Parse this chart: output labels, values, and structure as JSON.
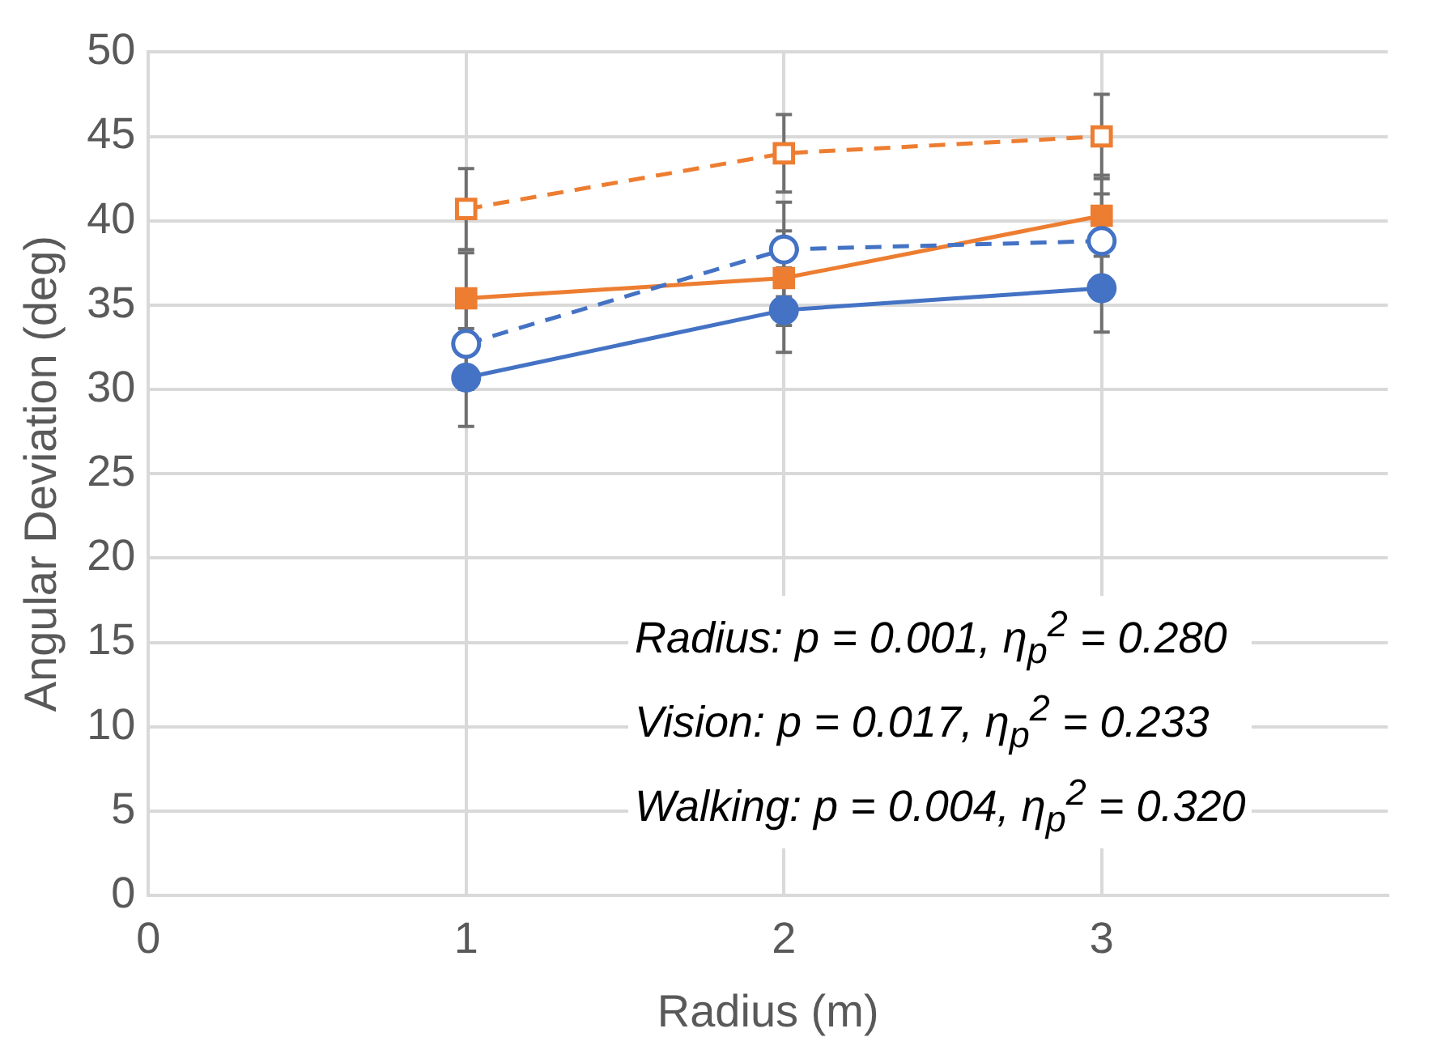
{
  "chart_data": {
    "type": "line",
    "xlabel": "Radius (m)",
    "ylabel": "Angular Deviation (deg)",
    "x": [
      1,
      2,
      3
    ],
    "xlim": [
      0,
      3.9
    ],
    "xticks": [
      0,
      1,
      2,
      3
    ],
    "ylim": [
      0,
      50
    ],
    "yticks": [
      0,
      5,
      10,
      15,
      20,
      25,
      30,
      35,
      40,
      45,
      50
    ],
    "grid": true,
    "legend": false,
    "series": [
      {
        "color": "#4472c4",
        "marker": "circle",
        "line_style": "solid",
        "values": [
          30.7,
          34.7,
          36.0
        ],
        "errors": [
          2.9,
          2.5,
          2.6
        ]
      },
      {
        "color": "#4472c4",
        "marker": "circle",
        "line_style": "dashed",
        "values": [
          32.7,
          38.3,
          38.8
        ],
        "errors": [
          2.7,
          2.8,
          2.8
        ]
      },
      {
        "color": "#ed7d31",
        "marker": "square",
        "line_style": "solid",
        "values": [
          35.4,
          36.6,
          40.3
        ],
        "errors": [
          2.7,
          2.8,
          2.4
        ]
      },
      {
        "color": "#ed7d31",
        "marker": "square",
        "line_style": "dashed",
        "values": [
          40.7,
          44.0,
          45.0
        ],
        "errors": [
          2.4,
          2.3,
          2.5
        ]
      }
    ],
    "annotations": [
      "Radius: p = 0.001, η$_{p}$$^{2}$ = 0.280",
      "Vision: p = 0.017, η$_{p}$$^{2}$ = 0.233",
      "Walking: p = 0.004, η$_{p}$$^{2}$ = 0.320"
    ]
  }
}
